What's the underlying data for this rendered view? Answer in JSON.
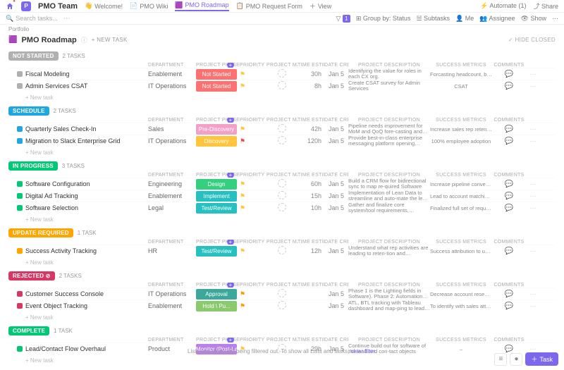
{
  "header": {
    "space_initial": "P",
    "space_name": "PMO Team",
    "tabs": [
      {
        "icon": "👋",
        "label": "Welcome!"
      },
      {
        "icon": "📄",
        "label": "PMO Wiki"
      },
      {
        "icon": "🟪",
        "label": "PMO Roadmap",
        "active": true
      },
      {
        "icon": "📋",
        "label": "PMO Request Form"
      },
      {
        "icon": "＋",
        "label": "View"
      }
    ],
    "automate": "Automate",
    "automate_count": "(1)",
    "share": "Share"
  },
  "toolbar": {
    "search": "Search tasks...",
    "filter_count": "1",
    "group_by": "Group by: Status",
    "subtasks": "Subtasks",
    "me": "Me",
    "assignee": "Assignee",
    "show": "Show"
  },
  "breadcrumb": "Portfolio",
  "title": {
    "icon": "🟪",
    "text": "PMO Roadmap"
  },
  "new_task": "+ NEW TASK",
  "hide_closed": "✓ HIDE CLOSED",
  "columns": [
    "",
    "DEPARTMENT",
    "PROJECT PHASE",
    "PRIORITY",
    "PROJECT MANAGER",
    "TIME ESTIMATE",
    "DATE CREATED",
    "PROJECT DESCRIPTION",
    "SUCCESS METRICS",
    "COMMENTS",
    ""
  ],
  "colors": {
    "not_started": "#b0b0b0",
    "scheduled": "#1fa8e0",
    "in_progress": "#00c875",
    "update_required": "#ffa500",
    "rejected": "#d63864",
    "complete": "#00c875",
    "phase_not_started": "#fd7171",
    "phase_pre_discovery": "#f2a0c8",
    "phase_discovery": "#ffc53d",
    "phase_design": "#35d07f",
    "phase_implement": "#26c0c0",
    "phase_test": "#26c0c0",
    "phase_approval": "#3ba89b",
    "phase_hold": "#8bc96e",
    "phase_monitor": "#b880e8",
    "priority_normal": "#ffc53d",
    "priority_urgent": "#e04f4f",
    "priority_high": "#ff9800"
  },
  "groups": [
    {
      "status": "NOT STARTED",
      "color": "#b0b0b0",
      "count": "2 TASKS",
      "tasks": [
        {
          "name": "Fiscal Modeling",
          "dept": "Enablement",
          "phase": "Not Started",
          "phase_color": "#fd7171",
          "pr_color": "#ffc53d",
          "time": "30h",
          "date": "Jan 5",
          "desc": "Identifying the value for roles in each CX org.",
          "metrics": "Forcasting headcount, bottom line, CAC, C..."
        },
        {
          "name": "Admin Services CSAT",
          "dept": "IT Operations",
          "phase": "Not Started",
          "phase_color": "#fd7171",
          "pr_color": "#ffc53d",
          "time": "8h",
          "date": "Jan 5",
          "desc": "Create CSAT survey for Admin Services",
          "metrics": "CSAT"
        }
      ]
    },
    {
      "status": "SCHEDULE",
      "color": "#1fa8e0",
      "count": "2 TASKS",
      "tasks": [
        {
          "name": "Quarterly Sales Check-In",
          "dept": "Sales",
          "phase": "Pre-Discovery",
          "phase_color": "#f2a0c8",
          "pr_color": "#ffc53d",
          "time": "42h",
          "date": "Jan 5",
          "desc": "Pipeline needs improvement for MoM and QoQ fore-casting and quota attainment. SPIFF mgmt process...",
          "metrics": "Increase sales rep retention rates QoQ and..."
        },
        {
          "name": "Migration to Slack Enterprise Grid",
          "dept": "IT Operations",
          "phase": "Discovery",
          "phase_color": "#ffc53d",
          "pr_color": "#e04f4f",
          "time": "120h",
          "date": "Jan 5",
          "desc": "Provide best-in-class enterprise messaging platform opening access to a controlled a multi-instance envi...",
          "metrics": "100% employee adoption"
        }
      ]
    },
    {
      "status": "IN PROGRESS",
      "color": "#00c875",
      "count": "3 TASKS",
      "tasks": [
        {
          "name": "Software Configuration",
          "dept": "Engineering",
          "phase": "Design",
          "phase_color": "#35d07f",
          "pr_color": "#ffc53d",
          "time": "60h",
          "date": "Jan 5",
          "desc": "Build a CRM flow for bidirectional sync to map re-quired Software",
          "metrics": "Increase pipeline conversion of new busine..."
        },
        {
          "name": "Digital Ad Tracking",
          "dept": "Enablement",
          "phase": "Implement",
          "phase_color": "#26c0c0",
          "pr_color": "#ffc53d",
          "time": "15h",
          "date": "Jan 5",
          "desc": "Implementation of Lean Data to streamline and auto-mate the lead routing capabilities.",
          "metrics": "Lead to account matching and handling of f..."
        },
        {
          "name": "Software Selection",
          "dept": "Legal",
          "phase": "Test/Review",
          "phase_color": "#26c0c0",
          "pr_color": "#ffc53d",
          "time": "10h",
          "date": "Jan 5",
          "desc": "Gather and finalize core system/tool requirements, MeSCoW capabilities, and acceptance criteria for C...",
          "metrics": "Finalized full set of requirements for Vendo..."
        }
      ]
    },
    {
      "status": "UPDATE REQUIRED",
      "color": "#ffa500",
      "count": "1 TASK",
      "tasks": [
        {
          "name": "Success Activity Tracking",
          "dept": "HR",
          "phase": "Test/Review",
          "phase_color": "#26c0c0",
          "pr_color": "#ffc53d",
          "time": "12h",
          "date": "Jan 5",
          "desc": "Understand what rep activities are leading to reten-tion and expansion within their book of accounts.",
          "metrics": "Success attribution to understand custom..."
        }
      ]
    },
    {
      "status": "REJECTED",
      "color": "#d63864",
      "count": "2 TASKS",
      "has_icon": true,
      "tasks": [
        {
          "name": "Customer Success Console",
          "dept": "IT Operations",
          "phase": "Approval",
          "phase_color": "#3ba89b",
          "pr_color": "#ff9800",
          "time": "",
          "date": "Jan 5",
          "desc": "Phase 1 is the Lighting fields in Software). Phase 2: Automations requirements gathering vs. vendor pur...",
          "metrics": "Decrease account research time for CSMs ..."
        },
        {
          "name": "Event Object Tracking",
          "dept": "Enablement",
          "phase": "Hold \\ Pu...",
          "phase_color": "#8bc96e",
          "pr_color": "#ff9800",
          "time": "",
          "date": "Jan 5",
          "desc": "ATL, BTL tracking with Tableau dashboard and map-ping to lead and contact objects",
          "metrics": "To identify with sales attribution variables (..."
        }
      ]
    },
    {
      "status": "COMPLETE",
      "color": "#00c875",
      "count": "1 TASK",
      "tasks": [
        {
          "name": "Lead/Contact Flow Overhaul",
          "dept": "Product",
          "phase": "Monitor (Post-Laun...",
          "phase_color": "#b880e8",
          "pr_color": "#ffc53d",
          "time": "29h",
          "date": "Jan 5",
          "desc": "Continue build out for software of the lead and con-tact objects",
          "metrics": "–"
        }
      ]
    }
  ],
  "new_task_row": "+ New task",
  "filter_msg": "Lists and tasks are being filtered out. To show all Lists and tasks, ",
  "filter_link": "clear filter.",
  "task_button": "Task"
}
